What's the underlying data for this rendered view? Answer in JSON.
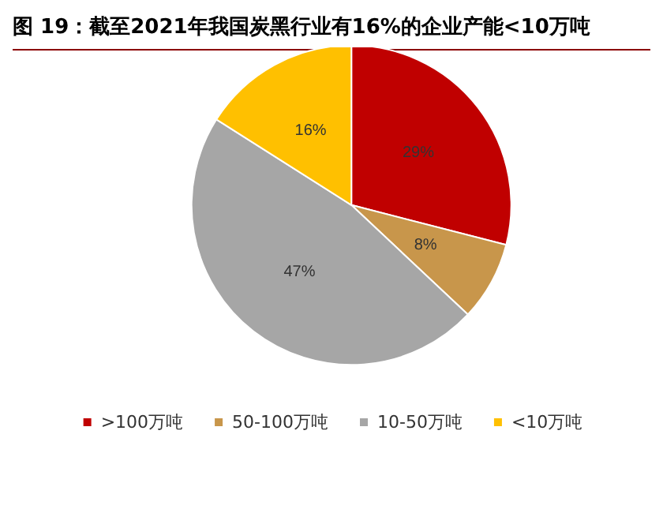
{
  "chart_data": {
    "type": "pie",
    "title": "图 19：截至2021年我国炭黑行业有16%的企业产能<10万吨",
    "categories": [
      ">100万吨",
      "50-100万吨",
      "10-50万吨",
      "<10万吨"
    ],
    "values": [
      29,
      8,
      47,
      16
    ],
    "value_labels": [
      "29%",
      "8%",
      "47%",
      "16%"
    ],
    "colors": [
      "#c00000",
      "#c8964b",
      "#a6a6a6",
      "#ffc000"
    ],
    "legend": "bottom"
  }
}
